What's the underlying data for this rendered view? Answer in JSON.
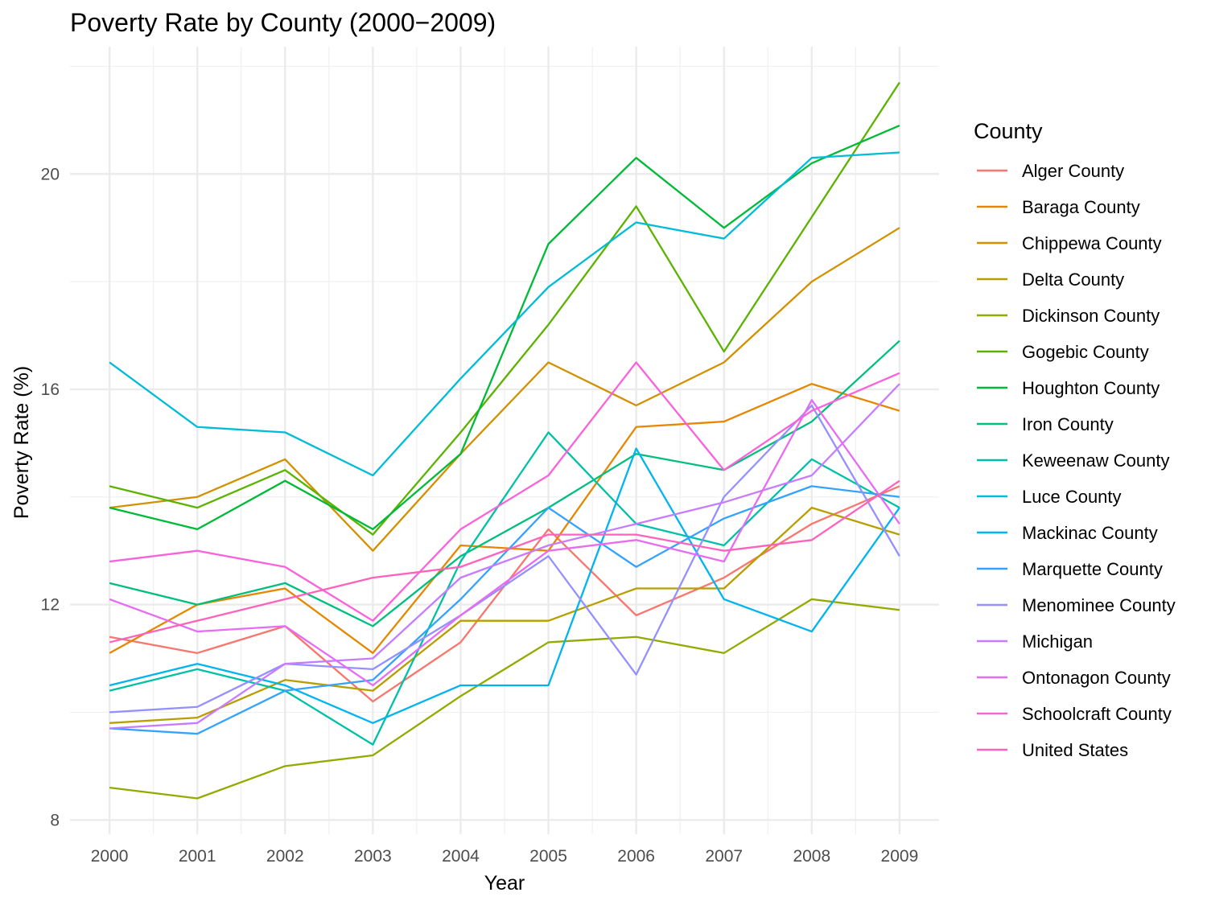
{
  "chart_data": {
    "type": "line",
    "title": "Poverty Rate by County (2000−2009)",
    "xlabel": "Year",
    "ylabel": "Poverty Rate (%)",
    "x": [
      2000,
      2001,
      2002,
      2003,
      2004,
      2005,
      2006,
      2007,
      2008,
      2009
    ],
    "x_ticks": [
      "2000",
      "2001",
      "2002",
      "2003",
      "2004",
      "2005",
      "2006",
      "2007",
      "2008",
      "2009"
    ],
    "y_ticks": [
      8,
      12,
      16,
      20
    ],
    "ylim": [
      7.735,
      22.365
    ],
    "xlim": [
      1999.55,
      2009.45
    ],
    "grid": true,
    "legend_title": "County",
    "legend_position": "right",
    "series": [
      {
        "name": "Alger County",
        "color": "#F8766D",
        "values": [
          11.4,
          11.1,
          11.6,
          10.2,
          11.3,
          13.4,
          11.8,
          12.5,
          13.5,
          14.2
        ]
      },
      {
        "name": "Baraga County",
        "color": "#E58700",
        "values": [
          11.1,
          12.0,
          12.3,
          11.1,
          13.1,
          13.0,
          15.3,
          15.4,
          16.1,
          15.6
        ]
      },
      {
        "name": "Chippewa County",
        "color": "#D29100",
        "values": [
          13.8,
          14.0,
          14.7,
          13.0,
          14.8,
          16.5,
          15.7,
          16.5,
          18.0,
          19.0
        ]
      },
      {
        "name": "Delta County",
        "color": "#B99E00",
        "values": [
          9.8,
          9.9,
          10.6,
          10.4,
          11.7,
          11.7,
          12.3,
          12.3,
          13.8,
          13.3
        ]
      },
      {
        "name": "Dickinson County",
        "color": "#93AA00",
        "values": [
          8.6,
          8.4,
          9.0,
          9.2,
          10.3,
          11.3,
          11.4,
          11.1,
          12.1,
          11.9
        ]
      },
      {
        "name": "Gogebic County",
        "color": "#5BB300",
        "values": [
          14.2,
          13.8,
          14.5,
          13.3,
          15.2,
          17.2,
          19.4,
          16.7,
          19.2,
          21.7
        ]
      },
      {
        "name": "Houghton County",
        "color": "#00BA38",
        "values": [
          13.8,
          13.4,
          14.3,
          13.4,
          14.8,
          18.7,
          20.3,
          19.0,
          20.2,
          20.9
        ]
      },
      {
        "name": "Iron County",
        "color": "#00BF7D",
        "values": [
          12.4,
          12.0,
          12.4,
          11.6,
          12.9,
          13.8,
          14.8,
          14.5,
          15.4,
          16.9
        ]
      },
      {
        "name": "Keweenaw County",
        "color": "#00C1A7",
        "values": [
          10.4,
          10.8,
          10.4,
          9.4,
          12.8,
          15.2,
          13.5,
          13.1,
          14.7,
          13.8
        ]
      },
      {
        "name": "Luce County",
        "color": "#00BCD8",
        "values": [
          16.5,
          15.3,
          15.2,
          14.4,
          16.2,
          17.9,
          19.1,
          18.8,
          20.3,
          20.4
        ]
      },
      {
        "name": "Mackinac County",
        "color": "#00B4F0",
        "values": [
          10.5,
          10.9,
          10.5,
          9.8,
          10.5,
          10.5,
          14.9,
          12.1,
          11.5,
          13.8
        ]
      },
      {
        "name": "Marquette County",
        "color": "#35A2FF",
        "values": [
          9.7,
          9.6,
          10.4,
          10.6,
          12.1,
          13.8,
          12.7,
          13.6,
          14.2,
          14.0
        ]
      },
      {
        "name": "Menominee County",
        "color": "#9590FF",
        "values": [
          10.0,
          10.1,
          10.9,
          10.8,
          11.8,
          12.9,
          10.7,
          14.0,
          15.7,
          12.9
        ]
      },
      {
        "name": "Michigan",
        "color": "#C77CFF",
        "values": [
          9.7,
          9.8,
          10.9,
          11.0,
          12.5,
          13.1,
          13.5,
          13.9,
          14.4,
          16.1
        ]
      },
      {
        "name": "Ontonagon County",
        "color": "#E76BF3",
        "values": [
          12.1,
          11.5,
          11.6,
          10.5,
          11.8,
          13.0,
          13.2,
          12.8,
          15.8,
          13.5
        ]
      },
      {
        "name": "Schoolcraft County",
        "color": "#FA62DB",
        "values": [
          12.8,
          13.0,
          12.7,
          11.7,
          13.4,
          14.4,
          16.5,
          14.5,
          15.6,
          16.3
        ]
      },
      {
        "name": "United States",
        "color": "#FF62BC",
        "values": [
          11.3,
          11.7,
          12.1,
          12.5,
          12.7,
          13.3,
          13.3,
          13.0,
          13.2,
          14.3
        ]
      }
    ]
  }
}
